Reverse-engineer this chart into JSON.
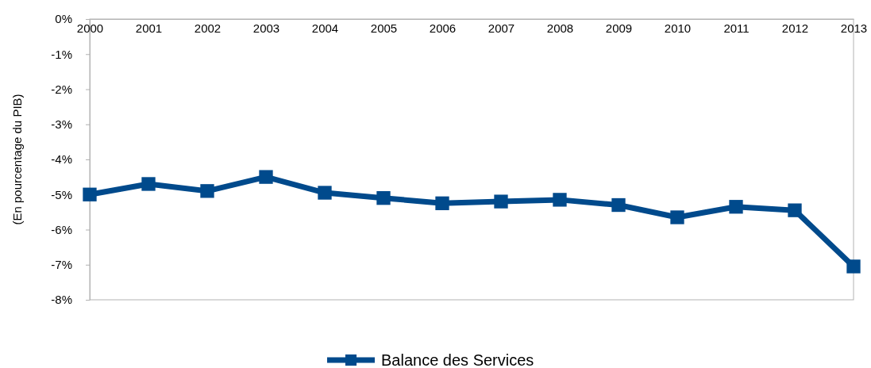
{
  "chart_data": {
    "type": "line",
    "ylabel": "(En pourcentage du PIB)",
    "categories": [
      "2000",
      "2001",
      "2002",
      "2003",
      "2004",
      "2005",
      "2006",
      "2007",
      "2008",
      "2009",
      "2010",
      "2011",
      "2012",
      "2013"
    ],
    "series": [
      {
        "name": "Balance des Services",
        "color": "#004a8c",
        "values": [
          -5.0,
          -4.7,
          -4.9,
          -4.5,
          -4.95,
          -5.1,
          -5.25,
          -5.2,
          -5.15,
          -5.3,
          -5.65,
          -5.35,
          -5.45,
          -7.05
        ]
      }
    ],
    "ylim": [
      -8,
      0
    ],
    "yticks": [
      {
        "value": -8,
        "label": "-8%"
      },
      {
        "value": -7,
        "label": "-7%"
      },
      {
        "value": -6,
        "label": "-6%"
      },
      {
        "value": -5,
        "label": "-5%"
      },
      {
        "value": -4,
        "label": "-4%"
      },
      {
        "value": -3,
        "label": "-3%"
      },
      {
        "value": -2,
        "label": "-2%"
      },
      {
        "value": -1,
        "label": "-1%"
      },
      {
        "value": 0,
        "label": "0%"
      }
    ],
    "grid": false,
    "legend": "bottom",
    "marker": "square",
    "line_style": "solid"
  }
}
